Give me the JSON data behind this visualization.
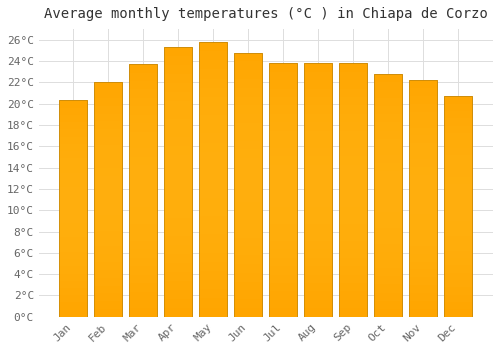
{
  "title": "Average monthly temperatures (°C ) in Chiapa de Corzo",
  "months": [
    "Jan",
    "Feb",
    "Mar",
    "Apr",
    "May",
    "Jun",
    "Jul",
    "Aug",
    "Sep",
    "Oct",
    "Nov",
    "Dec"
  ],
  "values": [
    20.3,
    22.0,
    23.7,
    25.3,
    25.8,
    24.8,
    23.8,
    23.8,
    23.8,
    22.8,
    22.2,
    20.7
  ],
  "bar_color_bottom": "#FFA500",
  "bar_color_top": "#FFCC55",
  "bar_edge_color": "#CC8800",
  "ylim": [
    0,
    27
  ],
  "yticks": [
    0,
    2,
    4,
    6,
    8,
    10,
    12,
    14,
    16,
    18,
    20,
    22,
    24,
    26
  ],
  "background_color": "#FFFFFF",
  "plot_bg_color": "#FFFFFF",
  "grid_color": "#DDDDDD",
  "title_fontsize": 10,
  "tick_fontsize": 8,
  "title_color": "#333333",
  "tick_color": "#666666"
}
